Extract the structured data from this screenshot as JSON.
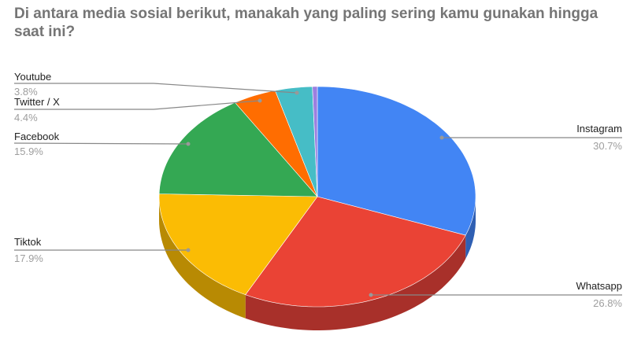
{
  "chart_data": {
    "type": "pie",
    "style": "3d",
    "title": "Di antara media sosial berikut, manakah yang paling sering kamu gunakan hingga saat ini?",
    "categories": [
      "Instagram",
      "Whatsapp",
      "Tiktok",
      "Facebook",
      "Twitter / X",
      "Youtube",
      ""
    ],
    "values": [
      30.7,
      26.8,
      17.9,
      15.9,
      4.4,
      3.8,
      0.5
    ],
    "labels": [
      "30.7%",
      "26.8%",
      "17.9%",
      "15.9%",
      "4.4%",
      "3.8%",
      ""
    ],
    "colors": [
      "#4285f4",
      "#ea4335",
      "#fbbc04",
      "#34a853",
      "#ff6d01",
      "#46bdc6",
      "#9c7fe0"
    ],
    "side_colors": [
      "#2f5fb3",
      "#a8302a",
      "#b88a03",
      "#257a3d",
      "#b84f01",
      "#328a91",
      "#6f5aa3"
    ],
    "legend": "labels with leader lines"
  }
}
